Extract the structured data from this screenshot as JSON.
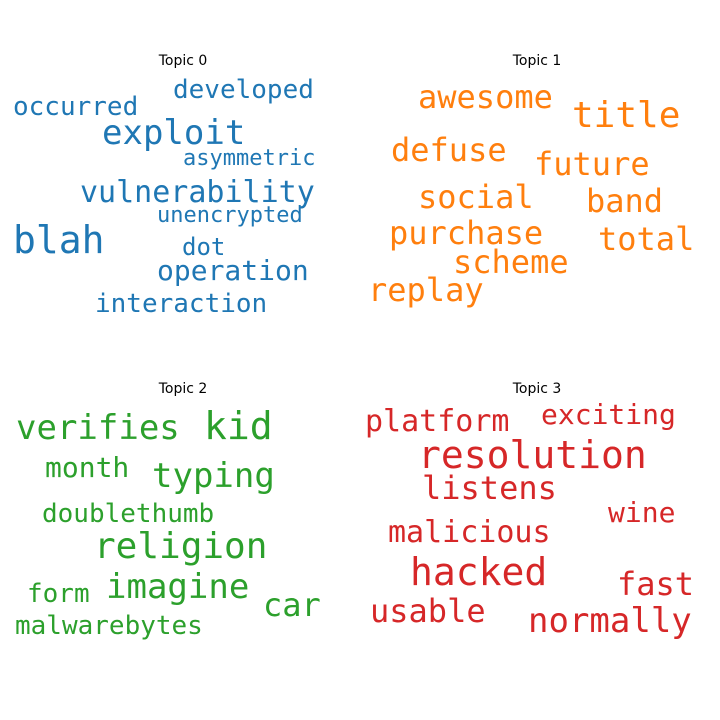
{
  "chart_data": [
    {
      "type": "wordcloud",
      "title": "Topic 0",
      "color": "#1f77b4",
      "words": [
        "exploit",
        "vulnerability",
        "blah",
        "operation",
        "developed",
        "occurred",
        "interaction",
        "asymmetric",
        "dot",
        "unencrypted"
      ]
    },
    {
      "type": "wordcloud",
      "title": "Topic 1",
      "color": "#ff7f0e",
      "words": [
        "title",
        "awesome",
        "future",
        "defuse",
        "social",
        "band",
        "purchase",
        "total",
        "scheme",
        "replay"
      ]
    },
    {
      "type": "wordcloud",
      "title": "Topic 2",
      "color": "#2ca02c",
      "words": [
        "kid",
        "verifies",
        "religion",
        "typing",
        "imagine",
        "month",
        "car",
        "doublethumb",
        "form",
        "malwarebytes"
      ]
    },
    {
      "type": "wordcloud",
      "title": "Topic 3",
      "color": "#d62728",
      "words": [
        "resolution",
        "hacked",
        "listens",
        "malicious",
        "platform",
        "exciting",
        "normally",
        "usable",
        "fast",
        "wine"
      ]
    }
  ]
}
